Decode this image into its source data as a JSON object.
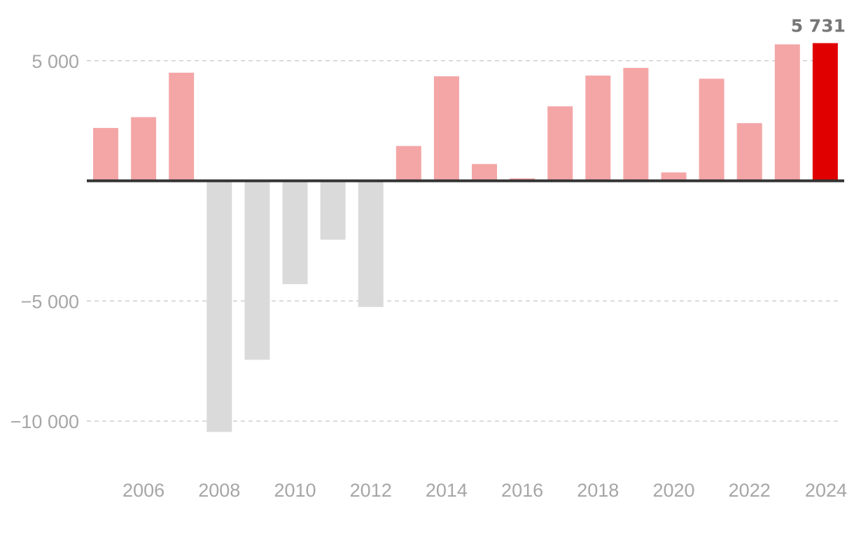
{
  "chart_data": {
    "type": "bar",
    "categories": [
      "2005",
      "2006",
      "2007",
      "2008",
      "2009",
      "2010",
      "2011",
      "2012",
      "2013",
      "2014",
      "2015",
      "2016",
      "2017",
      "2018",
      "2019",
      "2020",
      "2021",
      "2022",
      "2023",
      "2024"
    ],
    "values": [
      2200,
      2650,
      4500,
      -10450,
      -7450,
      -4300,
      -2450,
      -5250,
      1450,
      4350,
      700,
      100,
      3100,
      4380,
      4700,
      350,
      4250,
      2400,
      5680,
      5731
    ],
    "title": "",
    "xlabel": "",
    "ylabel": "",
    "ylim": [
      -12000,
      6200
    ],
    "y_ticks": [
      5000,
      -5000,
      -10000
    ],
    "y_tick_labels": [
      "5 000",
      "−5 000",
      "−10 000"
    ],
    "x_tick_labels": [
      "2006",
      "2008",
      "2010",
      "2012",
      "2014",
      "2016",
      "2018",
      "2020",
      "2022",
      "2024"
    ],
    "grid": true,
    "legend": "none",
    "highlight": {
      "category": "2024",
      "label": "5 731"
    },
    "colors": {
      "positive": "#f4a6a7",
      "negative": "#dadada",
      "highlight": "#e00000",
      "zero_line": "#333333",
      "grid": "#cfcfcf",
      "tick_text": "#a6a6a6",
      "callout_text": "#777777"
    }
  }
}
